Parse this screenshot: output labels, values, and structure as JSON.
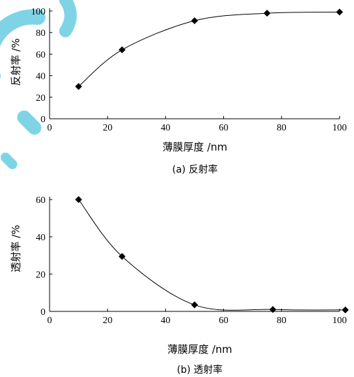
{
  "colors": {
    "axis": "#000000",
    "line": "#000000",
    "marker": "#000000",
    "watermark": "#7fd3e6"
  },
  "chart_data": [
    {
      "type": "line",
      "caption": "(a) 反射率",
      "xlabel": "薄膜厚度 /nm",
      "ylabel": "反射率 /%",
      "xlim": [
        0,
        100
      ],
      "ylim": [
        0,
        100
      ],
      "xticks": [
        "0",
        "20",
        "40",
        "60",
        "80",
        "100"
      ],
      "yticks": [
        "0",
        "20",
        "40",
        "60",
        "80",
        "100"
      ],
      "grid": false,
      "points": [
        {
          "x": 10,
          "y": 30
        },
        {
          "x": 25,
          "y": 64
        },
        {
          "x": 50,
          "y": 91
        },
        {
          "x": 75,
          "y": 98
        },
        {
          "x": 100,
          "y": 99
        }
      ]
    },
    {
      "type": "line",
      "caption": "(b) 透射率",
      "xlabel": "薄膜厚度 /nm",
      "ylabel": "透射率 /%",
      "xlim": [
        0,
        100
      ],
      "ylim": [
        0,
        60
      ],
      "xticks": [
        "0",
        "20",
        "40",
        "60",
        "80",
        "100"
      ],
      "yticks": [
        "0",
        "20",
        "40",
        "60"
      ],
      "grid": false,
      "points": [
        {
          "x": 10,
          "y": 60
        },
        {
          "x": 25,
          "y": 29.5
        },
        {
          "x": 50,
          "y": 3.5
        },
        {
          "x": 77,
          "y": 1
        },
        {
          "x": 102,
          "y": 0.8
        }
      ]
    }
  ]
}
